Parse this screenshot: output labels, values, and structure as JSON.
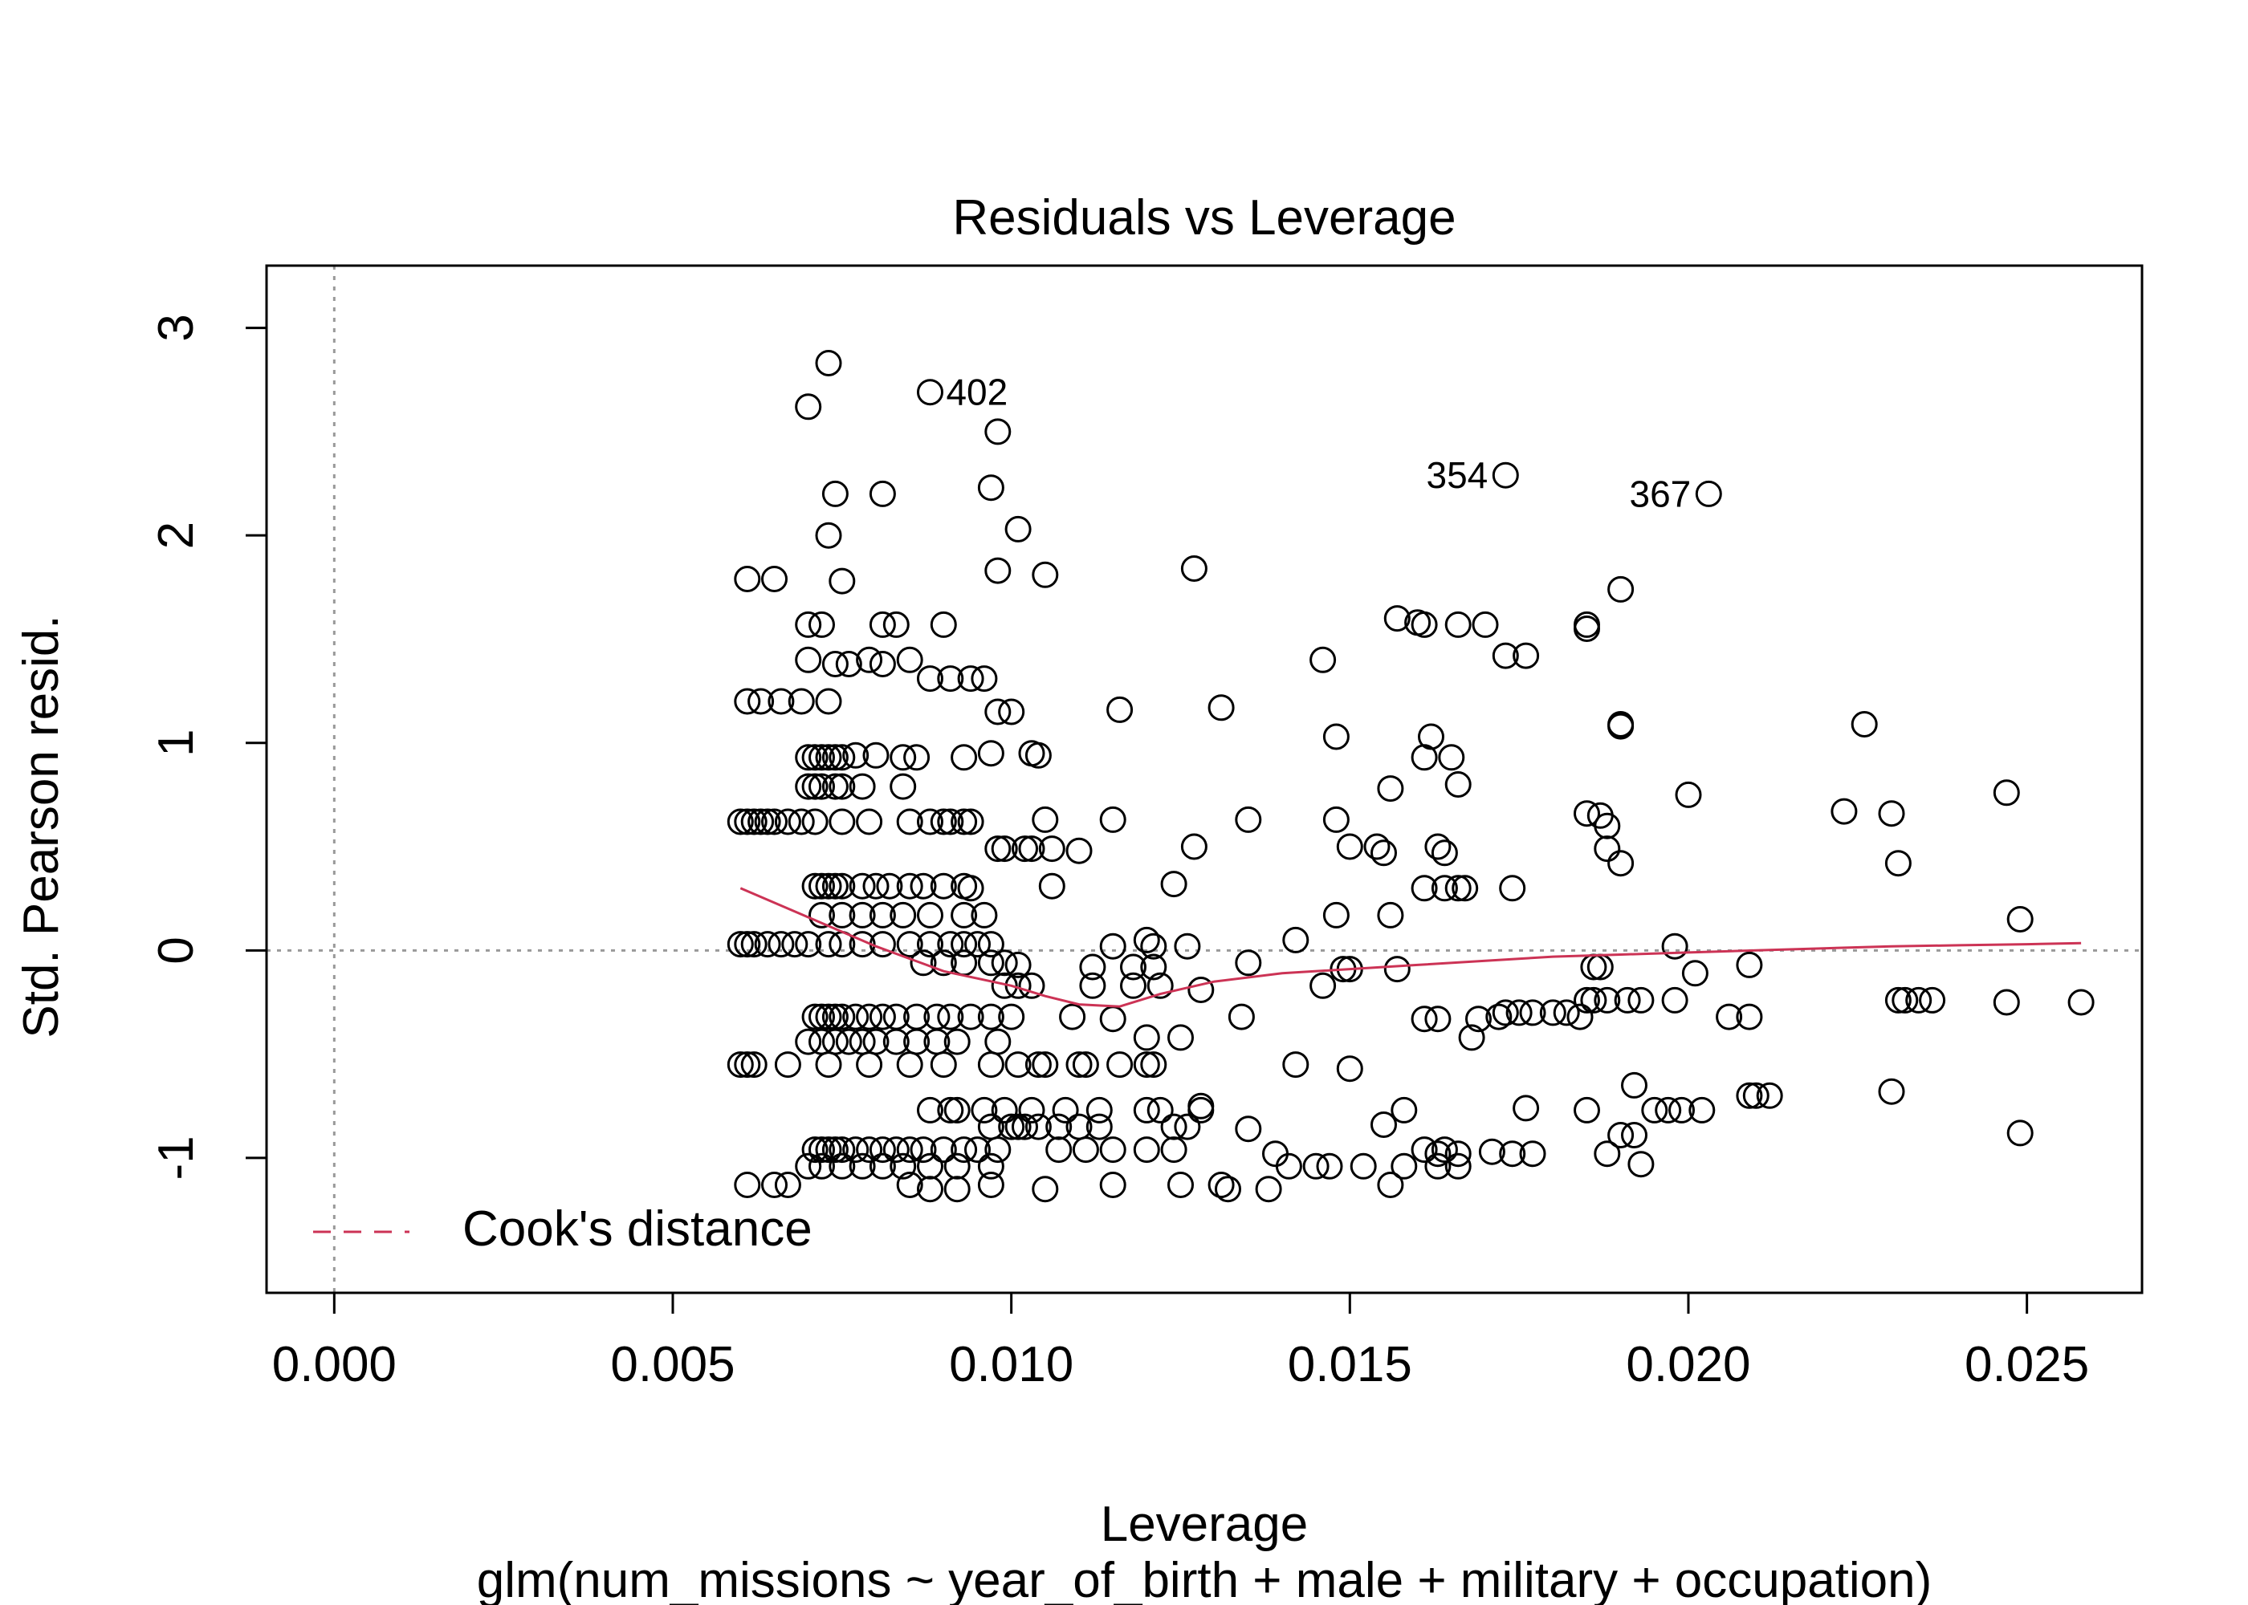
{
  "chart_data": {
    "type": "scatter",
    "title": "Residuals vs Leverage",
    "xlabel": "Leverage",
    "sublabel": "glm(num_missions ~ year_of_birth + male + military + occupation)",
    "ylabel": "Std. Pearson resid.",
    "xlim": [
      -0.001,
      0.0267
    ],
    "ylim": [
      -1.65,
      3.3
    ],
    "xticks": [
      {
        "v": 0.0,
        "label": "0.000"
      },
      {
        "v": 0.005,
        "label": "0.005"
      },
      {
        "v": 0.01,
        "label": "0.010"
      },
      {
        "v": 0.015,
        "label": "0.015"
      },
      {
        "v": 0.02,
        "label": "0.020"
      },
      {
        "v": 0.025,
        "label": "0.025"
      }
    ],
    "yticks": [
      {
        "v": -1,
        "label": "-1"
      },
      {
        "v": 0,
        "label": "0"
      },
      {
        "v": 1,
        "label": "1"
      },
      {
        "v": 2,
        "label": "2"
      },
      {
        "v": 3,
        "label": "3"
      }
    ],
    "reference_lines": {
      "x": 0,
      "y": 0,
      "style": "dotted",
      "color": "#999999"
    },
    "legend": {
      "position": "bottom-left",
      "entries": [
        {
          "label": "Cook's distance",
          "style": "dashed",
          "color": "#cc3355"
        }
      ]
    },
    "smoother": {
      "color": "#cc3355",
      "x": [
        0.006,
        0.007,
        0.008,
        0.009,
        0.01,
        0.0105,
        0.011,
        0.0116,
        0.0122,
        0.013,
        0.014,
        0.015,
        0.016,
        0.017,
        0.018,
        0.019,
        0.02,
        0.021,
        0.022,
        0.023,
        0.024,
        0.025,
        0.0258
      ],
      "y": [
        0.3,
        0.16,
        0.02,
        -0.1,
        -0.17,
        -0.22,
        -0.26,
        -0.27,
        -0.21,
        -0.15,
        -0.11,
        -0.09,
        -0.07,
        -0.05,
        -0.03,
        -0.02,
        -0.01,
        0.0,
        0.01,
        0.02,
        0.025,
        0.03,
        0.035
      ]
    },
    "point_labels": [
      {
        "label": "402",
        "x": 0.0088,
        "y": 2.69,
        "side": "right"
      },
      {
        "label": "354",
        "x": 0.0173,
        "y": 2.29,
        "side": "left"
      },
      {
        "label": "367",
        "x": 0.0203,
        "y": 2.2,
        "side": "left"
      }
    ],
    "points": [
      [
        0.0073,
        2.83
      ],
      [
        0.007,
        2.62
      ],
      [
        0.0088,
        2.69
      ],
      [
        0.0098,
        2.5
      ],
      [
        0.0074,
        2.2
      ],
      [
        0.0081,
        2.2
      ],
      [
        0.0097,
        2.23
      ],
      [
        0.0073,
        2.0
      ],
      [
        0.0101,
        2.03
      ],
      [
        0.0061,
        1.79
      ],
      [
        0.0065,
        1.79
      ],
      [
        0.0075,
        1.78
      ],
      [
        0.0098,
        1.83
      ],
      [
        0.0105,
        1.81
      ],
      [
        0.0127,
        1.84
      ],
      [
        0.0173,
        2.29
      ],
      [
        0.0203,
        2.2
      ],
      [
        0.019,
        1.74
      ],
      [
        0.007,
        1.57
      ],
      [
        0.0072,
        1.57
      ],
      [
        0.0081,
        1.57
      ],
      [
        0.0083,
        1.57
      ],
      [
        0.009,
        1.57
      ],
      [
        0.0157,
        1.6
      ],
      [
        0.016,
        1.58
      ],
      [
        0.0161,
        1.57
      ],
      [
        0.0166,
        1.57
      ],
      [
        0.017,
        1.57
      ],
      [
        0.0185,
        1.57
      ],
      [
        0.0185,
        1.55
      ],
      [
        0.007,
        1.4
      ],
      [
        0.0074,
        1.38
      ],
      [
        0.0076,
        1.38
      ],
      [
        0.0079,
        1.4
      ],
      [
        0.0081,
        1.38
      ],
      [
        0.0085,
        1.4
      ],
      [
        0.0173,
        1.42
      ],
      [
        0.0176,
        1.42
      ],
      [
        0.0146,
        1.4
      ],
      [
        0.0088,
        1.31
      ],
      [
        0.0091,
        1.31
      ],
      [
        0.0094,
        1.31
      ],
      [
        0.0096,
        1.31
      ],
      [
        0.0061,
        1.2
      ],
      [
        0.0063,
        1.2
      ],
      [
        0.0066,
        1.2
      ],
      [
        0.0069,
        1.2
      ],
      [
        0.0073,
        1.2
      ],
      [
        0.0098,
        1.15
      ],
      [
        0.01,
        1.15
      ],
      [
        0.0116,
        1.16
      ],
      [
        0.0131,
        1.17
      ],
      [
        0.019,
        1.09
      ],
      [
        0.019,
        1.08
      ],
      [
        0.0226,
        1.09
      ],
      [
        0.0148,
        1.03
      ],
      [
        0.0162,
        1.03
      ],
      [
        0.007,
        0.93
      ],
      [
        0.0071,
        0.93
      ],
      [
        0.0072,
        0.93
      ],
      [
        0.0073,
        0.93
      ],
      [
        0.0074,
        0.93
      ],
      [
        0.0075,
        0.93
      ],
      [
        0.0077,
        0.94
      ],
      [
        0.008,
        0.94
      ],
      [
        0.0084,
        0.93
      ],
      [
        0.0086,
        0.93
      ],
      [
        0.0093,
        0.93
      ],
      [
        0.0097,
        0.95
      ],
      [
        0.0103,
        0.95
      ],
      [
        0.0104,
        0.94
      ],
      [
        0.0161,
        0.93
      ],
      [
        0.0165,
        0.93
      ],
      [
        0.007,
        0.79
      ],
      [
        0.0071,
        0.79
      ],
      [
        0.0072,
        0.79
      ],
      [
        0.0074,
        0.79
      ],
      [
        0.0075,
        0.79
      ],
      [
        0.0078,
        0.79
      ],
      [
        0.0084,
        0.79
      ],
      [
        0.0156,
        0.78
      ],
      [
        0.0166,
        0.8
      ],
      [
        0.02,
        0.75
      ],
      [
        0.0247,
        0.76
      ],
      [
        0.0223,
        0.67
      ],
      [
        0.023,
        0.66
      ],
      [
        0.006,
        0.62
      ],
      [
        0.0061,
        0.62
      ],
      [
        0.0062,
        0.62
      ],
      [
        0.0063,
        0.62
      ],
      [
        0.0064,
        0.62
      ],
      [
        0.0065,
        0.62
      ],
      [
        0.0067,
        0.62
      ],
      [
        0.0069,
        0.62
      ],
      [
        0.0071,
        0.62
      ],
      [
        0.0075,
        0.62
      ],
      [
        0.0079,
        0.62
      ],
      [
        0.0085,
        0.62
      ],
      [
        0.0088,
        0.62
      ],
      [
        0.009,
        0.62
      ],
      [
        0.0091,
        0.62
      ],
      [
        0.0093,
        0.62
      ],
      [
        0.0094,
        0.62
      ],
      [
        0.0105,
        0.63
      ],
      [
        0.0115,
        0.63
      ],
      [
        0.0135,
        0.63
      ],
      [
        0.0148,
        0.63
      ],
      [
        0.0185,
        0.66
      ],
      [
        0.0187,
        0.65
      ],
      [
        0.0188,
        0.6
      ],
      [
        0.0098,
        0.49
      ],
      [
        0.0099,
        0.49
      ],
      [
        0.0102,
        0.49
      ],
      [
        0.0103,
        0.49
      ],
      [
        0.0106,
        0.49
      ],
      [
        0.011,
        0.48
      ],
      [
        0.0127,
        0.5
      ],
      [
        0.015,
        0.5
      ],
      [
        0.0154,
        0.5
      ],
      [
        0.0155,
        0.47
      ],
      [
        0.0163,
        0.5
      ],
      [
        0.0164,
        0.47
      ],
      [
        0.0188,
        0.49
      ],
      [
        0.019,
        0.42
      ],
      [
        0.0231,
        0.42
      ],
      [
        0.0071,
        0.31
      ],
      [
        0.0072,
        0.31
      ],
      [
        0.0073,
        0.31
      ],
      [
        0.0074,
        0.31
      ],
      [
        0.0075,
        0.31
      ],
      [
        0.0078,
        0.31
      ],
      [
        0.008,
        0.31
      ],
      [
        0.0082,
        0.31
      ],
      [
        0.0085,
        0.31
      ],
      [
        0.0087,
        0.31
      ],
      [
        0.009,
        0.31
      ],
      [
        0.0093,
        0.31
      ],
      [
        0.0094,
        0.3
      ],
      [
        0.0106,
        0.31
      ],
      [
        0.0124,
        0.32
      ],
      [
        0.0161,
        0.3
      ],
      [
        0.0164,
        0.3
      ],
      [
        0.0166,
        0.3
      ],
      [
        0.0167,
        0.3
      ],
      [
        0.0174,
        0.3
      ],
      [
        0.0072,
        0.17
      ],
      [
        0.0075,
        0.17
      ],
      [
        0.0078,
        0.17
      ],
      [
        0.0081,
        0.17
      ],
      [
        0.0084,
        0.17
      ],
      [
        0.0088,
        0.17
      ],
      [
        0.0093,
        0.17
      ],
      [
        0.0096,
        0.17
      ],
      [
        0.0148,
        0.17
      ],
      [
        0.0156,
        0.17
      ],
      [
        0.0249,
        0.15
      ],
      [
        0.006,
        0.03
      ],
      [
        0.0061,
        0.03
      ],
      [
        0.0062,
        0.03
      ],
      [
        0.0064,
        0.03
      ],
      [
        0.0066,
        0.03
      ],
      [
        0.0068,
        0.03
      ],
      [
        0.007,
        0.03
      ],
      [
        0.0073,
        0.03
      ],
      [
        0.0075,
        0.03
      ],
      [
        0.0078,
        0.03
      ],
      [
        0.0081,
        0.03
      ],
      [
        0.0085,
        0.03
      ],
      [
        0.0088,
        0.03
      ],
      [
        0.0091,
        0.03
      ],
      [
        0.0093,
        0.03
      ],
      [
        0.0095,
        0.03
      ],
      [
        0.0097,
        0.03
      ],
      [
        0.0115,
        0.02
      ],
      [
        0.012,
        0.05
      ],
      [
        0.0121,
        0.02
      ],
      [
        0.0126,
        0.02
      ],
      [
        0.0142,
        0.05
      ],
      [
        0.0198,
        0.02
      ],
      [
        0.0087,
        -0.06
      ],
      [
        0.009,
        -0.06
      ],
      [
        0.0093,
        -0.06
      ],
      [
        0.0097,
        -0.06
      ],
      [
        0.0099,
        -0.06
      ],
      [
        0.0101,
        -0.07
      ],
      [
        0.0112,
        -0.08
      ],
      [
        0.0118,
        -0.08
      ],
      [
        0.0121,
        -0.08
      ],
      [
        0.0135,
        -0.06
      ],
      [
        0.0149,
        -0.09
      ],
      [
        0.015,
        -0.09
      ],
      [
        0.0157,
        -0.09
      ],
      [
        0.0186,
        -0.08
      ],
      [
        0.0187,
        -0.08
      ],
      [
        0.0201,
        -0.11
      ],
      [
        0.0209,
        -0.07
      ],
      [
        0.0099,
        -0.17
      ],
      [
        0.0101,
        -0.17
      ],
      [
        0.0103,
        -0.17
      ],
      [
        0.0112,
        -0.17
      ],
      [
        0.0118,
        -0.17
      ],
      [
        0.0122,
        -0.17
      ],
      [
        0.0128,
        -0.19
      ],
      [
        0.0146,
        -0.17
      ],
      [
        0.0185,
        -0.24
      ],
      [
        0.0186,
        -0.24
      ],
      [
        0.0188,
        -0.24
      ],
      [
        0.0191,
        -0.24
      ],
      [
        0.0193,
        -0.24
      ],
      [
        0.0198,
        -0.24
      ],
      [
        0.0231,
        -0.24
      ],
      [
        0.0232,
        -0.24
      ],
      [
        0.0234,
        -0.24
      ],
      [
        0.0236,
        -0.24
      ],
      [
        0.0247,
        -0.25
      ],
      [
        0.0258,
        -0.25
      ],
      [
        0.0071,
        -0.32
      ],
      [
        0.0072,
        -0.32
      ],
      [
        0.0073,
        -0.32
      ],
      [
        0.0074,
        -0.32
      ],
      [
        0.0075,
        -0.32
      ],
      [
        0.0077,
        -0.32
      ],
      [
        0.0079,
        -0.32
      ],
      [
        0.0081,
        -0.32
      ],
      [
        0.0083,
        -0.32
      ],
      [
        0.0086,
        -0.32
      ],
      [
        0.0089,
        -0.32
      ],
      [
        0.0091,
        -0.32
      ],
      [
        0.0094,
        -0.32
      ],
      [
        0.0097,
        -0.32
      ],
      [
        0.01,
        -0.32
      ],
      [
        0.0109,
        -0.32
      ],
      [
        0.0115,
        -0.33
      ],
      [
        0.0134,
        -0.32
      ],
      [
        0.0161,
        -0.33
      ],
      [
        0.0163,
        -0.33
      ],
      [
        0.0169,
        -0.33
      ],
      [
        0.0172,
        -0.32
      ],
      [
        0.0173,
        -0.3
      ],
      [
        0.0175,
        -0.3
      ],
      [
        0.0177,
        -0.3
      ],
      [
        0.018,
        -0.3
      ],
      [
        0.0182,
        -0.3
      ],
      [
        0.0184,
        -0.32
      ],
      [
        0.0206,
        -0.32
      ],
      [
        0.0209,
        -0.32
      ],
      [
        0.007,
        -0.44
      ],
      [
        0.0072,
        -0.44
      ],
      [
        0.0074,
        -0.44
      ],
      [
        0.0076,
        -0.44
      ],
      [
        0.0078,
        -0.44
      ],
      [
        0.008,
        -0.44
      ],
      [
        0.0083,
        -0.44
      ],
      [
        0.0086,
        -0.44
      ],
      [
        0.0089,
        -0.44
      ],
      [
        0.0092,
        -0.44
      ],
      [
        0.0098,
        -0.44
      ],
      [
        0.012,
        -0.42
      ],
      [
        0.0125,
        -0.42
      ],
      [
        0.0168,
        -0.42
      ],
      [
        0.006,
        -0.55
      ],
      [
        0.0061,
        -0.55
      ],
      [
        0.0062,
        -0.55
      ],
      [
        0.0067,
        -0.55
      ],
      [
        0.0073,
        -0.55
      ],
      [
        0.0079,
        -0.55
      ],
      [
        0.0085,
        -0.55
      ],
      [
        0.009,
        -0.55
      ],
      [
        0.0097,
        -0.55
      ],
      [
        0.0101,
        -0.55
      ],
      [
        0.0104,
        -0.55
      ],
      [
        0.0105,
        -0.55
      ],
      [
        0.011,
        -0.55
      ],
      [
        0.0111,
        -0.55
      ],
      [
        0.0116,
        -0.55
      ],
      [
        0.012,
        -0.55
      ],
      [
        0.0121,
        -0.55
      ],
      [
        0.0142,
        -0.55
      ],
      [
        0.015,
        -0.57
      ],
      [
        0.0192,
        -0.65
      ],
      [
        0.0209,
        -0.7
      ],
      [
        0.021,
        -0.7
      ],
      [
        0.0212,
        -0.7
      ],
      [
        0.023,
        -0.68
      ],
      [
        0.0088,
        -0.77
      ],
      [
        0.0091,
        -0.77
      ],
      [
        0.0092,
        -0.77
      ],
      [
        0.0096,
        -0.77
      ],
      [
        0.0099,
        -0.77
      ],
      [
        0.0103,
        -0.77
      ],
      [
        0.0108,
        -0.77
      ],
      [
        0.0113,
        -0.77
      ],
      [
        0.012,
        -0.77
      ],
      [
        0.0122,
        -0.77
      ],
      [
        0.0128,
        -0.77
      ],
      [
        0.0128,
        -0.75
      ],
      [
        0.0158,
        -0.77
      ],
      [
        0.0176,
        -0.76
      ],
      [
        0.0185,
        -0.77
      ],
      [
        0.0195,
        -0.77
      ],
      [
        0.0197,
        -0.77
      ],
      [
        0.0199,
        -0.77
      ],
      [
        0.0202,
        -0.77
      ],
      [
        0.0097,
        -0.85
      ],
      [
        0.01,
        -0.85
      ],
      [
        0.0101,
        -0.85
      ],
      [
        0.0102,
        -0.85
      ],
      [
        0.0104,
        -0.85
      ],
      [
        0.0107,
        -0.85
      ],
      [
        0.011,
        -0.85
      ],
      [
        0.0113,
        -0.85
      ],
      [
        0.0124,
        -0.85
      ],
      [
        0.0126,
        -0.85
      ],
      [
        0.0135,
        -0.86
      ],
      [
        0.0155,
        -0.84
      ],
      [
        0.019,
        -0.89
      ],
      [
        0.0192,
        -0.89
      ],
      [
        0.0249,
        -0.88
      ],
      [
        0.0071,
        -0.96
      ],
      [
        0.0072,
        -0.96
      ],
      [
        0.0073,
        -0.96
      ],
      [
        0.0074,
        -0.96
      ],
      [
        0.0075,
        -0.96
      ],
      [
        0.0077,
        -0.96
      ],
      [
        0.0079,
        -0.96
      ],
      [
        0.0081,
        -0.96
      ],
      [
        0.0083,
        -0.96
      ],
      [
        0.0085,
        -0.96
      ],
      [
        0.0087,
        -0.96
      ],
      [
        0.009,
        -0.96
      ],
      [
        0.0093,
        -0.96
      ],
      [
        0.0095,
        -0.96
      ],
      [
        0.0098,
        -0.96
      ],
      [
        0.0107,
        -0.96
      ],
      [
        0.0111,
        -0.96
      ],
      [
        0.0115,
        -0.96
      ],
      [
        0.012,
        -0.96
      ],
      [
        0.0124,
        -0.96
      ],
      [
        0.0139,
        -0.98
      ],
      [
        0.0161,
        -0.96
      ],
      [
        0.0163,
        -0.98
      ],
      [
        0.0164,
        -0.96
      ],
      [
        0.0166,
        -0.98
      ],
      [
        0.0171,
        -0.97
      ],
      [
        0.0174,
        -0.98
      ],
      [
        0.0177,
        -0.98
      ],
      [
        0.0188,
        -0.98
      ],
      [
        0.007,
        -1.04
      ],
      [
        0.0072,
        -1.04
      ],
      [
        0.0075,
        -1.04
      ],
      [
        0.0078,
        -1.04
      ],
      [
        0.0081,
        -1.04
      ],
      [
        0.0084,
        -1.04
      ],
      [
        0.0088,
        -1.04
      ],
      [
        0.0092,
        -1.04
      ],
      [
        0.0097,
        -1.04
      ],
      [
        0.0141,
        -1.04
      ],
      [
        0.0145,
        -1.04
      ],
      [
        0.0147,
        -1.04
      ],
      [
        0.0152,
        -1.04
      ],
      [
        0.0158,
        -1.04
      ],
      [
        0.0163,
        -1.04
      ],
      [
        0.0166,
        -1.04
      ],
      [
        0.0193,
        -1.03
      ],
      [
        0.0061,
        -1.13
      ],
      [
        0.0065,
        -1.13
      ],
      [
        0.0067,
        -1.13
      ],
      [
        0.0085,
        -1.13
      ],
      [
        0.0088,
        -1.15
      ],
      [
        0.0092,
        -1.15
      ],
      [
        0.0097,
        -1.13
      ],
      [
        0.0105,
        -1.15
      ],
      [
        0.0115,
        -1.13
      ],
      [
        0.0125,
        -1.13
      ],
      [
        0.0131,
        -1.13
      ],
      [
        0.0132,
        -1.15
      ],
      [
        0.0138,
        -1.15
      ],
      [
        0.0156,
        -1.13
      ]
    ]
  }
}
